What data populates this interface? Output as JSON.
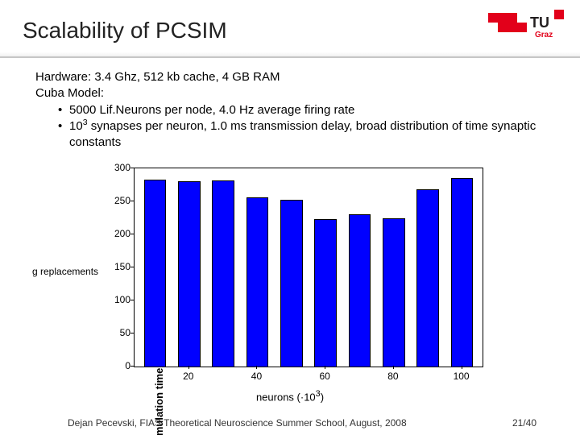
{
  "slide": {
    "title": "Scalability of PCSIM",
    "hardware_line": "Hardware: 3.4 Ghz, 512 kb cache, 4 GB RAM",
    "model_line": "Cuba Model:",
    "bullet1": "5000 Lif.Neurons per node, 4.0 Hz average firing rate",
    "bullet2_pre": "10",
    "bullet2_sup": "3",
    "bullet2_post": " synapses per neuron, 1.0 ms transmission delay, broad distribution of time synaptic constants"
  },
  "chart": {
    "type": "bar",
    "truncated_label": "g replacements",
    "ylabel": "simulation time [sec]",
    "xlabel_pre": "neurons   (·10",
    "xlabel_sup": "3",
    "xlabel_post": ")",
    "ylim": [
      0,
      300
    ],
    "ytick_step": 50,
    "yticks": [
      0,
      50,
      100,
      150,
      200,
      250,
      300
    ],
    "xticks": [
      20,
      40,
      60,
      80,
      100
    ],
    "bars": [
      {
        "x": 10,
        "y": 283
      },
      {
        "x": 20,
        "y": 281
      },
      {
        "x": 30,
        "y": 282
      },
      {
        "x": 40,
        "y": 256
      },
      {
        "x": 50,
        "y": 253
      },
      {
        "x": 60,
        "y": 223
      },
      {
        "x": 70,
        "y": 230
      },
      {
        "x": 80,
        "y": 224
      },
      {
        "x": 90,
        "y": 268
      },
      {
        "x": 100,
        "y": 285
      }
    ],
    "x_domain": [
      4,
      106
    ],
    "bar_color": "#0000ff",
    "bar_edge": "#000000",
    "bar_width_units": 6.5,
    "axis_color": "#000000",
    "background": "#ffffff",
    "tick_fontsize": 12,
    "label_fontsize": 13
  },
  "footer": {
    "left": "Dejan Pecevski, FIAS Theoretical Neuroscience Summer School, August, 2008",
    "right": "21/40"
  },
  "logo": {
    "brand": "TU Graz",
    "red": "#e2001a",
    "dark": "#231f20"
  }
}
